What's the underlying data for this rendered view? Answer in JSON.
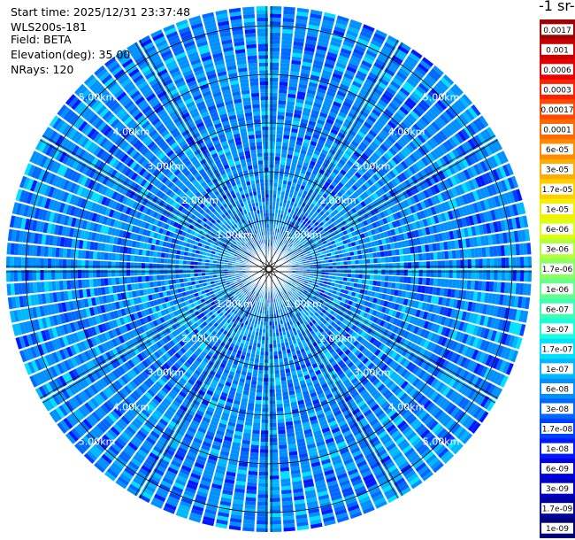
{
  "header": {
    "start_time": "Start time: 2025/12/31 23:37:48",
    "instrument": "WLS200s-181",
    "field": "Field: BETA",
    "elevation": "Elevation(deg): 35.00",
    "nrays": "NRays: 120"
  },
  "colorbar": {
    "title": "-1 sr-",
    "labels": [
      "0.0017",
      "0.001",
      "0.0006",
      "0.0003",
      "0.00017",
      "0.0001",
      "6e-05",
      "3e-05",
      "1.7e-05",
      "1e-05",
      "6e-06",
      "3e-06",
      "1.7e-06",
      "1e-06",
      "6e-07",
      "3e-07",
      "1.7e-07",
      "1e-07",
      "6e-08",
      "3e-08",
      "1.7e-08",
      "1e-08",
      "6e-09",
      "3e-09",
      "1.7e-09",
      "1e-09"
    ],
    "colors": [
      "#a00000",
      "#c80000",
      "#e60000",
      "#ff2000",
      "#ff4800",
      "#ff6a00",
      "#ff8c00",
      "#ffad00",
      "#ffd000",
      "#f5f000",
      "#dcff14",
      "#b4ff3c",
      "#8cff64",
      "#64ff8c",
      "#3cffb4",
      "#14ffdc",
      "#00e0ff",
      "#00b8ff",
      "#0090ff",
      "#0068ff",
      "#0040ff",
      "#0018ff",
      "#0000e6",
      "#0000c0",
      "#00009a",
      "#000078"
    ]
  },
  "chart_data": {
    "type": "polar-ppi",
    "field": "BETA",
    "elevation_deg": 35.0,
    "n_rays": 120,
    "rings_km": [
      1.0,
      2.0,
      3.0,
      4.0,
      5.0
    ],
    "ring_label": "{r}.00km",
    "max_range_km": 5.4,
    "spokes_deg": [
      0,
      30,
      60,
      90,
      120,
      150,
      180,
      210,
      240,
      270,
      300,
      330
    ],
    "dominant_range": [
      "1e-08",
      "1.7e-07"
    ],
    "palette": [
      "#0018ff",
      "#0040ff",
      "#0068ff",
      "#0090ff",
      "#00b8ff",
      "#00e0ff"
    ]
  }
}
